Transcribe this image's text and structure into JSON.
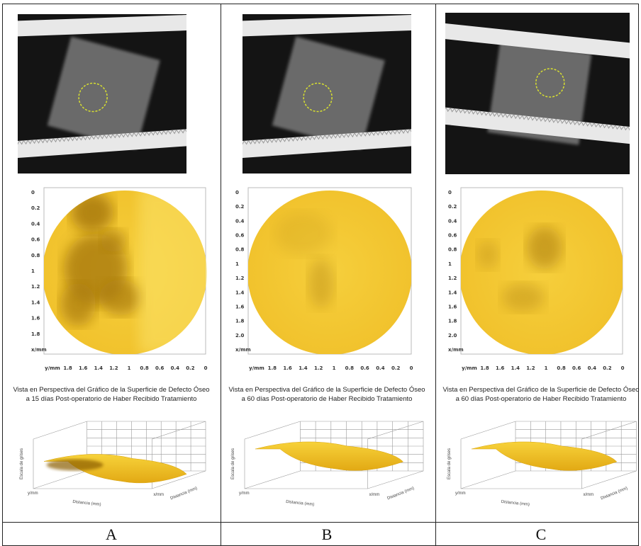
{
  "panels": [
    {
      "label": "A",
      "heatmap": {
        "row_ticks": [
          "0",
          "0.2",
          "0.4",
          "0.6",
          "0.8",
          "1",
          "1.2",
          "1.4",
          "1.6",
          "1.8",
          "x/mm"
        ],
        "col_ticks": [
          "y/mm",
          "1.8",
          "1.6",
          "1.4",
          "1.2",
          "1",
          "0.8",
          "0.6",
          "0.4",
          "0.2",
          "0"
        ]
      },
      "perspective": {
        "title": [
          "Vista en Perspectiva del Gráfico de la Superficie de Defecto Óseo",
          "a 15 días Post-operatorio de Haber Recibido Tratamiento"
        ],
        "y_unit": "y/mm",
        "x_unit": "x/mm",
        "x_label": "Distancia (mm)",
        "y_label": "Distancia (mm)",
        "z_label": "Escala de grises"
      }
    },
    {
      "label": "B",
      "heatmap": {
        "row_ticks": [
          "0",
          "0.2",
          "0.4",
          "0.6",
          "0.8",
          "1",
          "1.2",
          "1.4",
          "1.6",
          "1.8",
          "2.0",
          "x/mm"
        ],
        "col_ticks": [
          "y/mm",
          "1.8",
          "1.6",
          "1.4",
          "1.2",
          "1",
          "0.8",
          "0.6",
          "0.4",
          "0.2",
          "0"
        ]
      },
      "perspective": {
        "title": [
          "Vista en Perspectiva del Gráfico de la Superficie de Defecto Óseo",
          "a 60 días Post-operatorio de Haber Recibido Tratamiento"
        ],
        "y_unit": "y/mm",
        "x_unit": "x/mm",
        "x_label": "Distancia (mm)",
        "y_label": "Distancia (mm)",
        "z_label": "Escala de grises"
      }
    },
    {
      "label": "C",
      "heatmap": {
        "row_ticks": [
          "0",
          "0.2",
          "0.4",
          "0.6",
          "0.8",
          "1",
          "1.2",
          "1.4",
          "1.6",
          "1.8",
          "2.0",
          "x/mm"
        ],
        "col_ticks": [
          "y/mm",
          "1.8",
          "1.6",
          "1.4",
          "1.2",
          "1",
          "0.8",
          "0.6",
          "0.4",
          "0.2",
          "0"
        ]
      },
      "perspective": {
        "title": [
          "Vista en Perspectiva del Gráfico de la Superficie de Defecto Óseo",
          "a 60 días Post-operatorio de Haber Recibido Tratamiento"
        ],
        "y_unit": "y/mm",
        "x_unit": "x/mm",
        "x_label": "Distancia (mm)",
        "y_label": "Distancia (mm)",
        "z_label": "Escala de grises"
      }
    }
  ]
}
